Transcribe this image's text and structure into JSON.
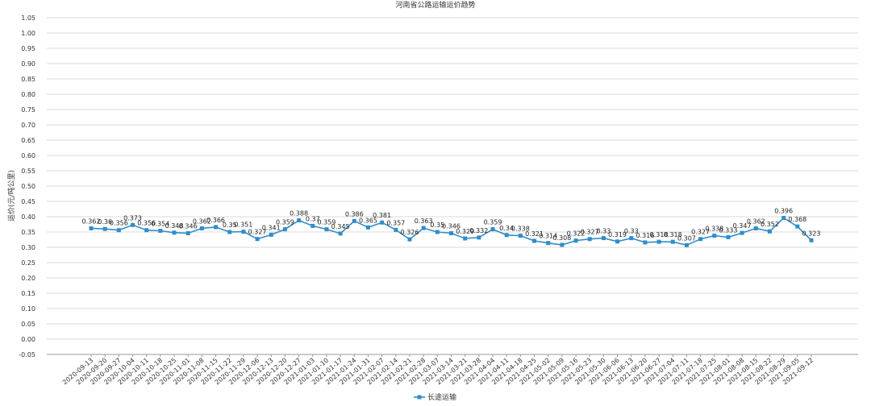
{
  "chart_data": {
    "type": "line",
    "title": "河南省公路运输运价趋势",
    "xlabel": "",
    "ylabel": "运价(元/吨公里)",
    "ylim": [
      -0.05,
      1.05
    ],
    "ystep": 0.05,
    "grid": true,
    "legend_position": "bottom-center",
    "accent_color": "#2f8dc9",
    "categories": [
      "2020-09-13",
      "2020-09-20",
      "2020-09-27",
      "2020-10-04",
      "2020-10-11",
      "2020-10-18",
      "2020-10-25",
      "2020-11-01",
      "2020-11-08",
      "2020-11-15",
      "2020-11-22",
      "2020-11-29",
      "2020-12-06",
      "2020-12-13",
      "2020-12-20",
      "2020-12-27",
      "2021-01-03",
      "2021-01-10",
      "2021-01-17",
      "2021-01-24",
      "2021-01-31",
      "2021-02-07",
      "2021-02-14",
      "2021-02-21",
      "2021-02-28",
      "2021-03-07",
      "2021-03-14",
      "2021-03-21",
      "2021-03-28",
      "2021-04-04",
      "2021-04-11",
      "2021-04-18",
      "2021-04-25",
      "2021-05-02",
      "2021-05-09",
      "2021-05-16",
      "2021-05-23",
      "2021-05-30",
      "2021-06-06",
      "2021-06-13",
      "2021-06-20",
      "2021-06-27",
      "2021-07-04",
      "2021-07-11",
      "2021-07-18",
      "2021-07-25",
      "2021-08-01",
      "2021-08-08",
      "2021-08-15",
      "2021-08-22",
      "2021-08-29",
      "2021-09-05",
      "2021-09-12"
    ],
    "series": [
      {
        "name": "长途运输",
        "values": [
          0.362,
          0.36,
          0.356,
          0.373,
          0.356,
          0.354,
          0.348,
          0.346,
          0.362,
          0.366,
          0.35,
          0.351,
          0.327,
          0.341,
          0.359,
          0.388,
          0.37,
          0.359,
          0.345,
          0.386,
          0.365,
          0.381,
          0.357,
          0.326,
          0.363,
          0.35,
          0.346,
          0.329,
          0.332,
          0.359,
          0.34,
          0.338,
          0.321,
          0.314,
          0.308,
          0.322,
          0.327,
          0.33,
          0.319,
          0.33,
          0.316,
          0.318,
          0.318,
          0.307,
          0.327,
          0.338,
          0.333,
          0.347,
          0.362,
          0.352,
          0.396,
          0.368,
          0.323
        ],
        "labels": [
          "0.362",
          "0.36",
          "0.356",
          "0.373",
          "0.356",
          "0.354",
          "0.348",
          "0.346",
          "0.362",
          "0.366",
          "0.35",
          "0.351",
          "0.327",
          "0.341",
          "0.359",
          "0.388",
          "0.37",
          "0.359",
          "0.345",
          "0.386",
          "0.365",
          "0.381",
          "0.357",
          "0.326",
          "0.363",
          "0.35",
          "0.346",
          "0.329",
          "0.332",
          "0.359",
          "0.34",
          "0.338",
          "0.321",
          "0.314",
          "0.308",
          "0.322",
          "0.327",
          "0.33",
          "0.319",
          "0.33",
          "0.316",
          "0.318",
          "0.318",
          "0.307",
          "0.327",
          "0.338",
          "0.333",
          "0.347",
          "0.362",
          "0.352",
          "0.396",
          "0.368",
          "0.323"
        ]
      }
    ]
  }
}
